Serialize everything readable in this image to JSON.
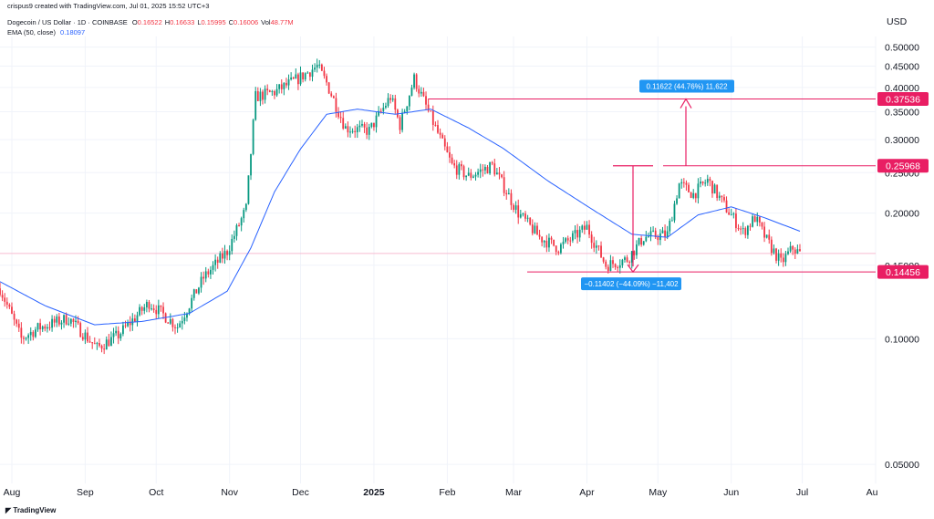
{
  "header": {
    "author_line": "crispus9 created with TradingView.com, Jul 01, 2025 15:52 UTC+3",
    "symbol_line": "Dogecoin / US Dollar · 1D · COINBASE",
    "ohlc": [
      {
        "label": "O",
        "value": "0.16522"
      },
      {
        "label": "H",
        "value": "0.16633"
      },
      {
        "label": "L",
        "value": "0.15995"
      },
      {
        "label": "C",
        "value": "0.16006"
      },
      {
        "label": "Vol",
        "value": "48.77M"
      }
    ],
    "ema_label": "EMA (50, close)",
    "ema_value": "0.18097"
  },
  "currency_label": "USD",
  "footer_brand": "TradingView",
  "colors": {
    "up": "#089981",
    "down": "#f23645",
    "ema": "#2962ff",
    "annotation": "#e91e63",
    "badge": "#e91e63",
    "measure_box": "#2196f3",
    "last_price_line": "#f8bbd0"
  },
  "chart_data": {
    "type": "candlestick",
    "symbol": "Dogecoin / US Dollar",
    "interval": "1D",
    "exchange": "COINBASE",
    "y_axis": {
      "scale": "log",
      "ticks": [
        "0.50000",
        "0.45000",
        "0.40000",
        "0.35000",
        "0.30000",
        "0.25000",
        "0.20000",
        "0.15000",
        "0.10000",
        "0.05000"
      ],
      "range": [
        0.045,
        0.53
      ]
    },
    "x_axis": {
      "labels": [
        "Aug",
        "Sep",
        "Oct",
        "Nov",
        "Dec",
        "2025",
        "Feb",
        "Mar",
        "Apr",
        "May",
        "Jun",
        "Jul",
        "Au"
      ],
      "bold_label": "2025",
      "range": [
        "2024-07-27",
        "2025-08-01"
      ]
    },
    "price_badges": [
      {
        "label": "0.37536",
        "value": 0.37536
      },
      {
        "label": "0.25968",
        "value": 0.25968
      },
      {
        "label": "0.14456",
        "value": 0.14456
      }
    ],
    "measures": [
      {
        "text": "0.11622 (44.76%) 11,622",
        "direction": "up",
        "from": 0.25968,
        "to": 0.37536
      },
      {
        "text": "−0.11402 (−44.09%) −11,402",
        "direction": "down",
        "from": 0.25968,
        "to": 0.14456
      }
    ],
    "last_price": 0.16006,
    "ema_anchors": [
      [
        "2024-07-27",
        0.137
      ],
      [
        "2024-08-15",
        0.12
      ],
      [
        "2024-09-05",
        0.108
      ],
      [
        "2024-09-25",
        0.11
      ],
      [
        "2024-10-15",
        0.115
      ],
      [
        "2024-10-31",
        0.13
      ],
      [
        "2024-11-10",
        0.165
      ],
      [
        "2024-11-20",
        0.225
      ],
      [
        "2024-12-01",
        0.285
      ],
      [
        "2024-12-12",
        0.345
      ],
      [
        "2024-12-25",
        0.355
      ],
      [
        "2025-01-10",
        0.345
      ],
      [
        "2025-01-25",
        0.355
      ],
      [
        "2025-02-10",
        0.32
      ],
      [
        "2025-02-25",
        0.285
      ],
      [
        "2025-03-15",
        0.24
      ],
      [
        "2025-04-01",
        0.208
      ],
      [
        "2025-04-20",
        0.178
      ],
      [
        "2025-05-05",
        0.175
      ],
      [
        "2025-05-18",
        0.198
      ],
      [
        "2025-06-01",
        0.207
      ],
      [
        "2025-06-15",
        0.195
      ],
      [
        "2025-06-30",
        0.181
      ]
    ],
    "close_anchors": [
      [
        "2024-07-27",
        0.132
      ],
      [
        "2024-08-05",
        0.1
      ],
      [
        "2024-08-12",
        0.106
      ],
      [
        "2024-08-25",
        0.112
      ],
      [
        "2024-09-06",
        0.095
      ],
      [
        "2024-09-15",
        0.102
      ],
      [
        "2024-09-28",
        0.122
      ],
      [
        "2024-10-10",
        0.107
      ],
      [
        "2024-10-21",
        0.14
      ],
      [
        "2024-10-31",
        0.162
      ],
      [
        "2024-11-08",
        0.205
      ],
      [
        "2024-11-12",
        0.38
      ],
      [
        "2024-11-20",
        0.39
      ],
      [
        "2024-11-30",
        0.42
      ],
      [
        "2024-12-08",
        0.45
      ],
      [
        "2024-12-12",
        0.41
      ],
      [
        "2024-12-20",
        0.32
      ],
      [
        "2024-12-30",
        0.315
      ],
      [
        "2025-01-08",
        0.38
      ],
      [
        "2025-01-12",
        0.325
      ],
      [
        "2025-01-18",
        0.42
      ],
      [
        "2025-01-24",
        0.35
      ],
      [
        "2025-02-03",
        0.26
      ],
      [
        "2025-02-10",
        0.245
      ],
      [
        "2025-02-20",
        0.26
      ],
      [
        "2025-03-03",
        0.2
      ],
      [
        "2025-03-12",
        0.175
      ],
      [
        "2025-03-20",
        0.165
      ],
      [
        "2025-04-01",
        0.185
      ],
      [
        "2025-04-09",
        0.15
      ],
      [
        "2025-04-18",
        0.155
      ],
      [
        "2025-04-25",
        0.175
      ],
      [
        "2025-05-05",
        0.178
      ],
      [
        "2025-05-10",
        0.235
      ],
      [
        "2025-05-16",
        0.222
      ],
      [
        "2025-05-22",
        0.24
      ],
      [
        "2025-05-30",
        0.205
      ],
      [
        "2025-06-06",
        0.18
      ],
      [
        "2025-06-11",
        0.195
      ],
      [
        "2025-06-16",
        0.172
      ],
      [
        "2025-06-22",
        0.152
      ],
      [
        "2025-06-27",
        0.165
      ],
      [
        "2025-06-30",
        0.16
      ]
    ]
  }
}
